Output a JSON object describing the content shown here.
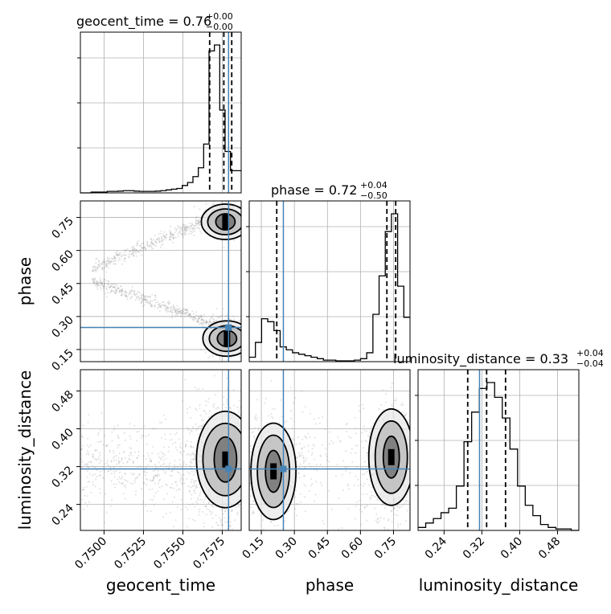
{
  "chart_data": {
    "type": "corner",
    "parameters": [
      {
        "name": "geocent_time",
        "label": "geocent_time",
        "range": [
          0.7485,
          0.7587
        ],
        "ticks": [
          0.75,
          0.7525,
          0.755,
          0.7575
        ],
        "tick_labels": [
          "0.7500",
          "0.7525",
          "0.7550",
          "0.7575"
        ],
        "title_main": "geocent_time = 0.76",
        "title_sup": "+0.00",
        "title_sub": "−0.00",
        "quantiles": [
          0.7567,
          0.7576,
          0.7581
        ],
        "truth": 0.7579,
        "hist_edges_range": [
          0.7485,
          0.7587
        ],
        "hist_values": [
          0,
          0,
          0.005,
          0.005,
          0.005,
          0.01,
          0.01,
          0.012,
          0.015,
          0.015,
          0.012,
          0.01,
          0.01,
          0.01,
          0.012,
          0.015,
          0.02,
          0.025,
          0.03,
          0.05,
          0.07,
          0.11,
          0.17,
          0.33,
          0.96,
          1.0,
          0.56,
          0.28,
          0.15,
          0.15
        ]
      },
      {
        "name": "phase",
        "label": "phase",
        "range": [
          0.095,
          0.825
        ],
        "ticks": [
          0.15,
          0.3,
          0.45,
          0.6,
          0.75
        ],
        "tick_labels": [
          "0.15",
          "0.30",
          "0.45",
          "0.60",
          "0.75"
        ],
        "title_main": "phase = 0.72",
        "title_sup": "+0.04",
        "title_sub": "−0.50",
        "quantiles": [
          0.22,
          0.72,
          0.76
        ],
        "truth": 0.25,
        "hist_edges_range": [
          0.095,
          0.825
        ],
        "hist_values": [
          0.03,
          0.13,
          0.29,
          0.27,
          0.21,
          0.1,
          0.08,
          0.06,
          0.05,
          0.04,
          0.03,
          0.02,
          0.01,
          0.01,
          0.005,
          0.005,
          0.005,
          0.01,
          0.02,
          0.06,
          0.32,
          0.58,
          0.88,
          1.0,
          0.51,
          0.3
        ]
      },
      {
        "name": "luminosity_distance",
        "label": "luminosity_distance",
        "range": [
          0.185,
          0.525
        ],
        "ticks": [
          0.24,
          0.32,
          0.4,
          0.48
        ],
        "tick_labels": [
          "0.24",
          "0.32",
          "0.40",
          "0.48"
        ],
        "title_main": "luminosity_distance = 0.33",
        "title_sup": "+0.04",
        "title_sub": "−0.04",
        "quantiles": [
          0.29,
          0.33,
          0.37
        ],
        "truth": 0.315,
        "hist_edges_range": [
          0.185,
          0.525
        ],
        "hist_values": [
          0.02,
          0.05,
          0.08,
          0.12,
          0.15,
          0.3,
          0.6,
          0.8,
          0.96,
          1.0,
          0.9,
          0.76,
          0.55,
          0.3,
          0.17,
          0.1,
          0.04,
          0.02,
          0.01,
          0.01,
          0.0
        ]
      }
    ],
    "pairs": [
      {
        "x": "geocent_time",
        "y": "phase",
        "modes": [
          {
            "x": 0.7577,
            "y": 0.73
          },
          {
            "x": 0.7578,
            "y": 0.2
          }
        ]
      },
      {
        "x": "geocent_time",
        "y": "luminosity_distance",
        "modes": [
          {
            "x": 0.7577,
            "y": 0.335
          }
        ]
      },
      {
        "x": "phase",
        "y": "luminosity_distance",
        "modes": [
          {
            "x": 0.205,
            "y": 0.31
          },
          {
            "x": 0.74,
            "y": 0.34
          }
        ]
      }
    ],
    "colors": {
      "hist": "#000000",
      "truth": "#4682b4",
      "grid": "#b0b0b0",
      "scatter": "#888888"
    }
  }
}
